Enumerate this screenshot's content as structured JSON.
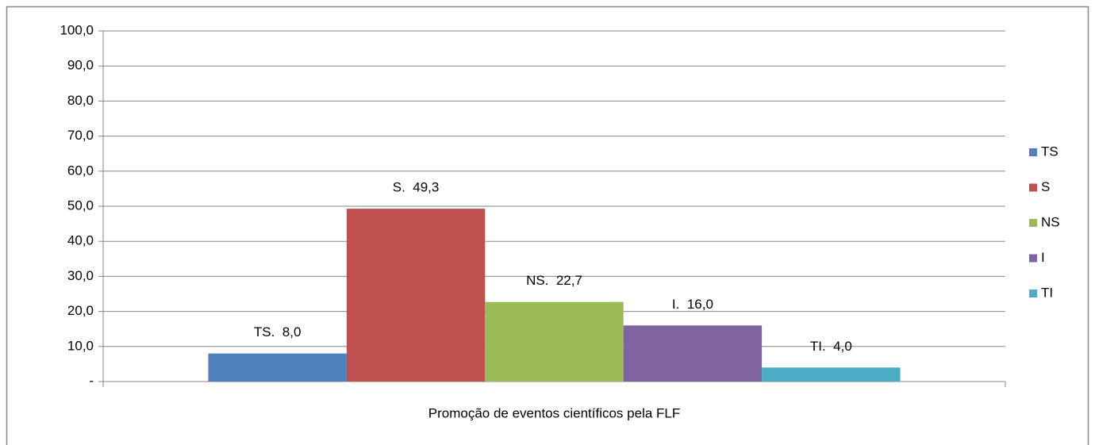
{
  "chart_data": {
    "type": "bar",
    "categories": [
      "Promoção de eventos científicos pela FLF"
    ],
    "series": [
      {
        "name": "TS",
        "color": "#4f81bd",
        "values": [
          8.0
        ],
        "value_labels": [
          "TS.  8,0"
        ]
      },
      {
        "name": "S",
        "color": "#c0504d",
        "values": [
          49.3
        ],
        "value_labels": [
          "S.  49,3"
        ]
      },
      {
        "name": "NS",
        "color": "#9bbb59",
        "values": [
          22.7
        ],
        "value_labels": [
          "NS.  22,7"
        ]
      },
      {
        "name": "I",
        "color": "#8064a2",
        "values": [
          16.0
        ],
        "value_labels": [
          "I.  16,0"
        ]
      },
      {
        "name": "TI",
        "color": "#4bacc6",
        "values": [
          4.0
        ],
        "value_labels": [
          "TI.  4,0"
        ]
      }
    ],
    "ylim": [
      0,
      100
    ],
    "yticks": [
      {
        "value": 0,
        "label": "-"
      },
      {
        "value": 10,
        "label": "10,0"
      },
      {
        "value": 20,
        "label": "20,0"
      },
      {
        "value": 30,
        "label": "30,0"
      },
      {
        "value": 40,
        "label": "40,0"
      },
      {
        "value": 50,
        "label": "50,0"
      },
      {
        "value": 60,
        "label": "60,0"
      },
      {
        "value": 70,
        "label": "70,0"
      },
      {
        "value": 80,
        "label": "80,0"
      },
      {
        "value": 90,
        "label": "90,0"
      },
      {
        "value": 100,
        "label": "100,0"
      }
    ],
    "grid": true,
    "legend": "right"
  }
}
